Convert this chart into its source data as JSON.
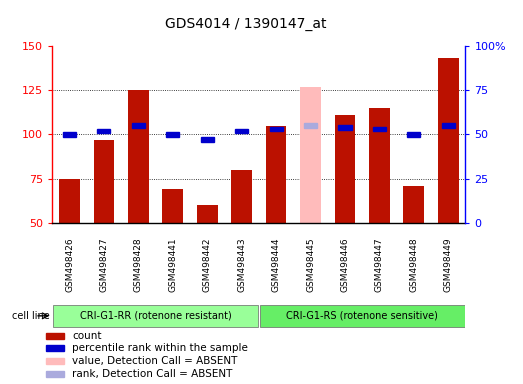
{
  "title": "GDS4014 / 1390147_at",
  "samples": [
    "GSM498426",
    "GSM498427",
    "GSM498428",
    "GSM498441",
    "GSM498442",
    "GSM498443",
    "GSM498444",
    "GSM498445",
    "GSM498446",
    "GSM498447",
    "GSM498448",
    "GSM498449"
  ],
  "counts": [
    75,
    97,
    125,
    69,
    60,
    80,
    105,
    127,
    111,
    115,
    71,
    143
  ],
  "ranks": [
    50,
    52,
    55,
    50,
    47,
    52,
    53,
    55,
    54,
    53,
    50,
    55
  ],
  "absent_flags": [
    false,
    false,
    false,
    false,
    false,
    false,
    false,
    true,
    false,
    false,
    false,
    false
  ],
  "ylim_left": [
    50,
    150
  ],
  "ylim_right": [
    0,
    100
  ],
  "yticks_left": [
    50,
    75,
    100,
    125,
    150
  ],
  "yticks_right": [
    0,
    25,
    50,
    75,
    100
  ],
  "groups": [
    {
      "label": "CRI-G1-RR (rotenone resistant)",
      "start": 0,
      "end": 6,
      "color": "#99ff99"
    },
    {
      "label": "CRI-G1-RS (rotenone sensitive)",
      "start": 6,
      "end": 12,
      "color": "#66ee66"
    }
  ],
  "group_row_label": "cell line",
  "bar_color": "#bb1100",
  "absent_bar_color": "#ffbbbb",
  "rank_color": "#0000cc",
  "absent_rank_color": "#aaaadd",
  "grid_linestyle": ":",
  "legend": [
    {
      "label": "count",
      "color": "#bb1100"
    },
    {
      "label": "percentile rank within the sample",
      "color": "#0000cc"
    },
    {
      "label": "value, Detection Call = ABSENT",
      "color": "#ffbbbb"
    },
    {
      "label": "rank, Detection Call = ABSENT",
      "color": "#aaaadd"
    }
  ]
}
